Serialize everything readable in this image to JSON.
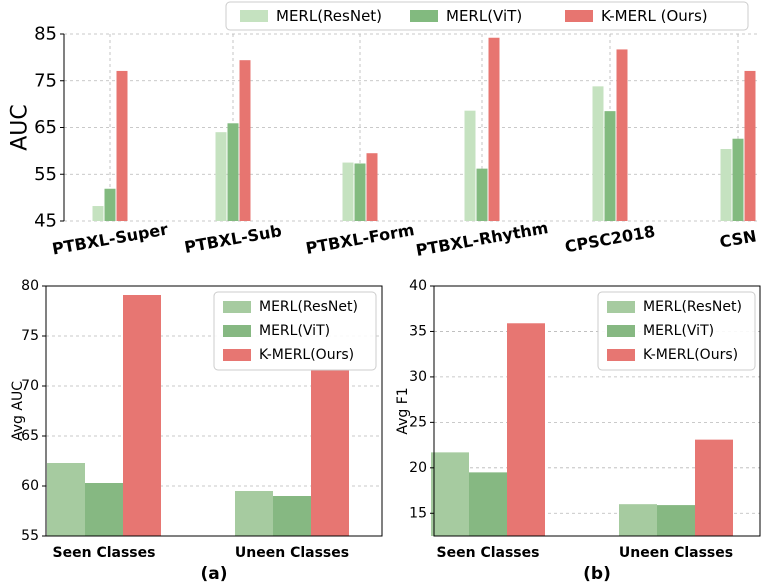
{
  "chart_data": [
    {
      "type": "bar",
      "categories": [
        "PTBXL-Super",
        "PTBXL-Sub",
        "PTBXL-Form",
        "PTBXL-Rhythm",
        "CPSC2018",
        "CSN"
      ],
      "series": [
        {
          "name": "MERL(ResNet)",
          "values": [
            48.2,
            64.0,
            57.5,
            68.6,
            73.8,
            60.4
          ],
          "color": "#c5e2c0"
        },
        {
          "name": "MERL(ViT)",
          "values": [
            51.9,
            65.9,
            57.3,
            56.2,
            68.5,
            62.6
          ],
          "color": "#82ba7f"
        },
        {
          "name": "K-MERL (Ours)",
          "values": [
            77.1,
            79.4,
            59.5,
            84.2,
            81.7,
            77.1
          ],
          "color": "#e77570"
        }
      ],
      "ylabel": "AUC",
      "ylim": [
        45,
        85
      ],
      "yticks": [
        45,
        55,
        65,
        75,
        85
      ],
      "grid": true,
      "legend": "top"
    },
    {
      "type": "bar",
      "categories": [
        "Seen Classes",
        "Uneen Classes"
      ],
      "series": [
        {
          "name": "MERL(ResNet)",
          "values": [
            62.3,
            59.5
          ],
          "color": "#a6cba0"
        },
        {
          "name": "MERL(ViT)",
          "values": [
            60.3,
            59.0
          ],
          "color": "#86b882"
        },
        {
          "name": "K-MERL(Ours)",
          "values": [
            79.1,
            71.6
          ],
          "color": "#e77672"
        }
      ],
      "ylabel": "Avg AUC",
      "ylim": [
        55,
        80
      ],
      "yticks": [
        55,
        60,
        65,
        70,
        75,
        80
      ],
      "caption": "(a)",
      "grid": true,
      "legend": "top-right"
    },
    {
      "type": "bar",
      "categories": [
        "Seen Classes",
        "Uneen Classes"
      ],
      "series": [
        {
          "name": "MERL(ResNet)",
          "values": [
            21.7,
            16.0
          ],
          "color": "#a6cba0"
        },
        {
          "name": "MERL(ViT)",
          "values": [
            19.5,
            15.9
          ],
          "color": "#86b882"
        },
        {
          "name": "K-MERL(Ours)",
          "values": [
            35.9,
            23.1
          ],
          "color": "#e77672"
        }
      ],
      "ylabel": "Avg F1",
      "ylim": [
        12.5,
        40
      ],
      "yticks": [
        15,
        20,
        25,
        30,
        35,
        40
      ],
      "caption": "(b)",
      "grid": true,
      "legend": "top-right"
    }
  ]
}
